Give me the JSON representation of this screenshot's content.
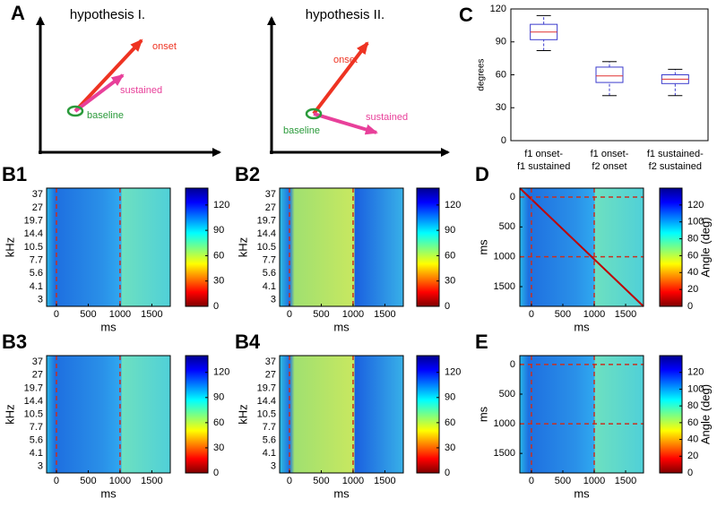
{
  "diagrams": {
    "label": "A",
    "hyp1": {
      "title": "hypothesis I.",
      "onset": "onset",
      "sustained": "sustained",
      "baseline": "baseline"
    },
    "hyp2": {
      "title": "hypothesis II.",
      "onset": "onset",
      "sustained": "sustained",
      "baseline": "baseline"
    }
  },
  "chart_data": [
    {
      "type": "box",
      "label": "C",
      "ylabel": "degrees",
      "ylim": [
        0,
        120
      ],
      "yticks": [
        0,
        30,
        60,
        90,
        120
      ],
      "categories": [
        [
          "f1 onset-",
          "f1 sustained"
        ],
        [
          "f1 onset-",
          "f2 onset"
        ],
        [
          "f1 sustained-",
          "f2 sustained"
        ]
      ],
      "min": [
        82,
        41,
        41
      ],
      "q1": [
        92,
        53,
        52
      ],
      "median": [
        99,
        59,
        56
      ],
      "q3": [
        106,
        67,
        60
      ],
      "max": [
        114,
        72,
        65
      ],
      "color": "#3a3acc",
      "median_color": "#e03030"
    },
    {
      "type": "heatmap",
      "label": "B1",
      "xlabel": "ms",
      "ylabel": "kHz",
      "xlim": [
        -155,
        1790
      ],
      "xticks": [
        0,
        500,
        1000,
        1500
      ],
      "categories": [
        "37",
        "27",
        "19.7",
        "14.4",
        "10.5",
        "7.7",
        "5.6",
        "4.1",
        "3"
      ],
      "markers": [
        0,
        1000
      ],
      "clim": [
        0,
        140
      ],
      "cticks": [
        0,
        30,
        60,
        90,
        120
      ]
    },
    {
      "type": "heatmap",
      "label": "B2",
      "xlabel": "ms",
      "ylabel": "kHz",
      "xlim": [
        -155,
        1790
      ],
      "xticks": [
        0,
        500,
        1000,
        1500
      ],
      "categories": [
        "37",
        "27",
        "19.7",
        "14.4",
        "10.5",
        "7.7",
        "5.6",
        "4.1",
        "3"
      ],
      "markers": [
        0,
        1000
      ],
      "clim": [
        0,
        140
      ],
      "cticks": [
        0,
        30,
        60,
        90,
        120
      ]
    },
    {
      "type": "heatmap",
      "label": "B3",
      "xlabel": "ms",
      "ylabel": "kHz",
      "xlim": [
        -155,
        1790
      ],
      "xticks": [
        0,
        500,
        1000,
        1500
      ],
      "categories": [
        "37",
        "27",
        "19.7",
        "14.4",
        "10.5",
        "7.7",
        "5.6",
        "4.1",
        "3"
      ],
      "markers": [
        0,
        1000
      ],
      "clim": [
        0,
        140
      ],
      "cticks": [
        0,
        30,
        60,
        90,
        120
      ]
    },
    {
      "type": "heatmap",
      "label": "B4",
      "xlabel": "ms",
      "ylabel": "kHz",
      "xlim": [
        -155,
        1790
      ],
      "xticks": [
        0,
        500,
        1000,
        1500
      ],
      "categories": [
        "37",
        "27",
        "19.7",
        "14.4",
        "10.5",
        "7.7",
        "5.6",
        "4.1",
        "3"
      ],
      "markers": [
        0,
        1000
      ],
      "clim": [
        0,
        140
      ],
      "cticks": [
        0,
        30,
        60,
        90,
        120
      ]
    },
    {
      "type": "heatmap",
      "label": "D",
      "xlabel": "ms",
      "ylabel": "ms",
      "xlim": [
        -185,
        1785
      ],
      "xticks": [
        0,
        500,
        1000,
        1500
      ],
      "ylim": [
        1830,
        -150
      ],
      "yticks": [
        0,
        500,
        1000,
        1500
      ],
      "markers": [
        0,
        1000
      ],
      "clim": [
        0,
        140
      ],
      "cticks": [
        0,
        20,
        40,
        60,
        80,
        100,
        120
      ],
      "clabel": "Angle (deg)"
    },
    {
      "type": "heatmap",
      "label": "E",
      "xlabel": "ms",
      "ylabel": "ms",
      "xlim": [
        -185,
        1785
      ],
      "xticks": [
        0,
        500,
        1000,
        1500
      ],
      "ylim": [
        1830,
        -150
      ],
      "yticks": [
        0,
        500,
        1000,
        1500
      ],
      "markers": [
        0,
        1000
      ],
      "clim": [
        0,
        140
      ],
      "cticks": [
        0,
        20,
        40,
        60,
        80,
        100,
        120
      ],
      "clabel": "Angle (deg)"
    }
  ]
}
